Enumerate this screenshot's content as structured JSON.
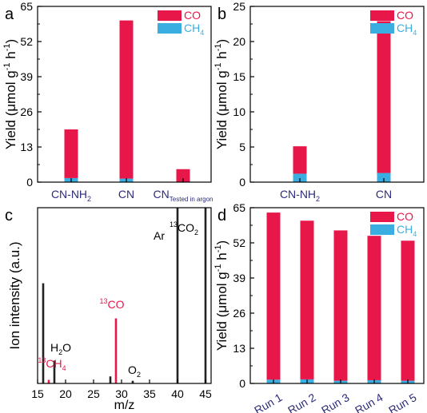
{
  "colors": {
    "co": "#e8174a",
    "ch4": "#3aaee0",
    "axis": "#000000",
    "label_blue": "#2b2b7a",
    "spectrum": "#222222"
  },
  "chart_data": [
    {
      "panel": "a",
      "type": "bar",
      "stacked": true,
      "categories": [
        "CN-NH",
        "CN",
        "CN"
      ],
      "category_subscripts": [
        "2",
        "",
        "Tested in argon"
      ],
      "series": [
        {
          "name": "CO",
          "values": [
            18,
            58.5,
            4.8
          ]
        },
        {
          "name": "CH",
          "name_subscript": "4",
          "values": [
            1.5,
            1.3,
            0
          ]
        }
      ],
      "ylabel": "Yield (μmol g",
      "ylabel_sup1": "-1",
      "ylabel_mid": " h",
      "ylabel_sup2": "-1",
      "ylabel_end": ")",
      "ylim": [
        0,
        65
      ],
      "yticks": [
        "0",
        "13",
        "26",
        "39",
        "52",
        "65"
      ],
      "legend_position": "top-right"
    },
    {
      "panel": "b",
      "type": "bar",
      "stacked": true,
      "categories": [
        "CN-NH",
        "CN"
      ],
      "category_subscripts": [
        "2",
        ""
      ],
      "series": [
        {
          "name": "CO",
          "values": [
            3.9,
            21.6
          ]
        },
        {
          "name": "CH",
          "name_subscript": "4",
          "values": [
            1.2,
            1.3
          ]
        }
      ],
      "ylabel": "Yield (μmol g",
      "ylabel_sup1": "-1",
      "ylabel_mid": " h",
      "ylabel_sup2": "-1",
      "ylabel_end": ")",
      "ylim": [
        0,
        25
      ],
      "yticks": [
        "0",
        "5",
        "10",
        "15",
        "20",
        "25"
      ],
      "legend_position": "top-right"
    },
    {
      "panel": "c",
      "type": "bar",
      "x": [
        16,
        17,
        18,
        28,
        29,
        32,
        40,
        45
      ],
      "values": [
        0.57,
        0.02,
        0.13,
        0.04,
        0.37,
        0.015,
        1.0,
        1.0
      ],
      "highlight": [
        false,
        true,
        false,
        false,
        true,
        false,
        false,
        false
      ],
      "annotations": [
        {
          "pre_sup": "",
          "text": "H",
          "sub": "2",
          "post": "O",
          "x": 18,
          "color": "axis"
        },
        {
          "pre_sup": "13",
          "text": "CH",
          "sub": "4",
          "post": "",
          "x": 17,
          "color": "co"
        },
        {
          "pre_sup": "13",
          "text": "CO",
          "sub": "",
          "post": "",
          "x": 29,
          "color": "co"
        },
        {
          "pre_sup": "",
          "text": "O",
          "sub": "2",
          "post": "",
          "x": 32,
          "color": "axis"
        },
        {
          "pre_sup": "",
          "text": "Ar",
          "sub": "",
          "post": "",
          "x": 40,
          "color": "axis"
        },
        {
          "pre_sup": "13",
          "text": "CO",
          "sub": "2",
          "post": "",
          "x": 45,
          "color": "axis"
        }
      ],
      "xlabel": "m/z",
      "ylabel": "Ion intensity (a.u.)",
      "xlim": [
        15,
        46
      ],
      "xticks": [
        "15",
        "20",
        "25",
        "30",
        "35",
        "40",
        "45"
      ],
      "ylim": [
        0,
        1
      ]
    },
    {
      "panel": "d",
      "type": "bar",
      "stacked": true,
      "categories": [
        "Run 1",
        "Run 2",
        "Run 3",
        "Run 4",
        "Run 5"
      ],
      "series": [
        {
          "name": "CO",
          "values": [
            61.8,
            58.7,
            55.6,
            53.4,
            51.8
          ]
        },
        {
          "name": "CH",
          "name_subscript": "4",
          "values": [
            1.4,
            1.5,
            1.0,
            1.2,
            1.0
          ]
        }
      ],
      "ylabel": "Yield (μmol g",
      "ylabel_sup1": "-1",
      "ylabel_mid": " h",
      "ylabel_sup2": "-1",
      "ylabel_end": ")",
      "ylim": [
        0,
        65
      ],
      "yticks": [
        "0",
        "13",
        "26",
        "39",
        "52",
        "65"
      ],
      "legend_position": "top-right"
    }
  ]
}
